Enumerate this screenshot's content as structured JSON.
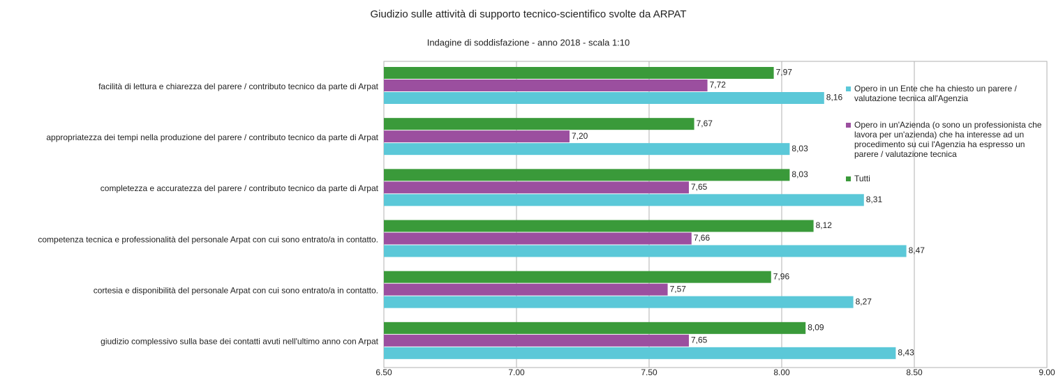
{
  "chart_data": {
    "type": "hbar",
    "title": "Giudizio sulle attività di supporto tecnico-scientifico svolte da ARPAT",
    "subtitle": "Indagine di soddisfazione - anno 2018 - scala 1:10",
    "categories": [
      "facilità di lettura e chiarezza del parere / contributo tecnico da parte di Arpat",
      "appropriatezza dei tempi nella produzione del parere / contributo tecnico da parte di Arpat",
      "completezza e accuratezza del parere / contributo tecnico da parte di Arpat",
      "competenza tecnica e professionalità del personale Arpat con cui sono entrato/a in contatto.",
      "cortesia e disponibilità del personale Arpat con cui sono entrato/a in contatto.",
      "giudizio complessivo sulla base dei contatti avuti nell'ultimo anno con Arpat"
    ],
    "series": [
      {
        "name": "Opero in un Ente che ha chiesto un parere / valutazione tecnica all'Agenzia",
        "color": "#5bc8d8",
        "values": [
          8.16,
          8.03,
          8.31,
          8.47,
          8.27,
          8.43
        ],
        "value_labels": [
          "8,16",
          "8,03",
          "8,31",
          "8,47",
          "8,27",
          "8,43"
        ]
      },
      {
        "name": "Opero in un'Azienda (o sono un professionista che lavora per un'azienda) che ha interesse ad un procedimento su cui l'Agenzia ha espresso un parere / valutazione tecnica",
        "color": "#9b4f9f",
        "values": [
          7.72,
          7.2,
          7.65,
          7.66,
          7.57,
          7.65
        ],
        "value_labels": [
          "7,72",
          "7,20",
          "7,65",
          "7,66",
          "7,57",
          "7,65"
        ]
      },
      {
        "name": "Tutti",
        "color": "#3a9a3a",
        "values": [
          7.97,
          7.67,
          8.03,
          8.12,
          7.96,
          8.09
        ],
        "value_labels": [
          "7,97",
          "7,67",
          "8,03",
          "8,12",
          "7,96",
          "8,09"
        ]
      }
    ],
    "xlim": [
      6.5,
      9.0
    ],
    "xticks": [
      {
        "value": 6.5,
        "label": "6.50"
      },
      {
        "value": 7.0,
        "label": "7.00"
      },
      {
        "value": 7.5,
        "label": "7.50"
      },
      {
        "value": 8.0,
        "label": "8.00"
      },
      {
        "value": 8.5,
        "label": "8.50"
      },
      {
        "value": 9.0,
        "label": "9.00"
      }
    ],
    "grid": true,
    "legend": "right"
  }
}
